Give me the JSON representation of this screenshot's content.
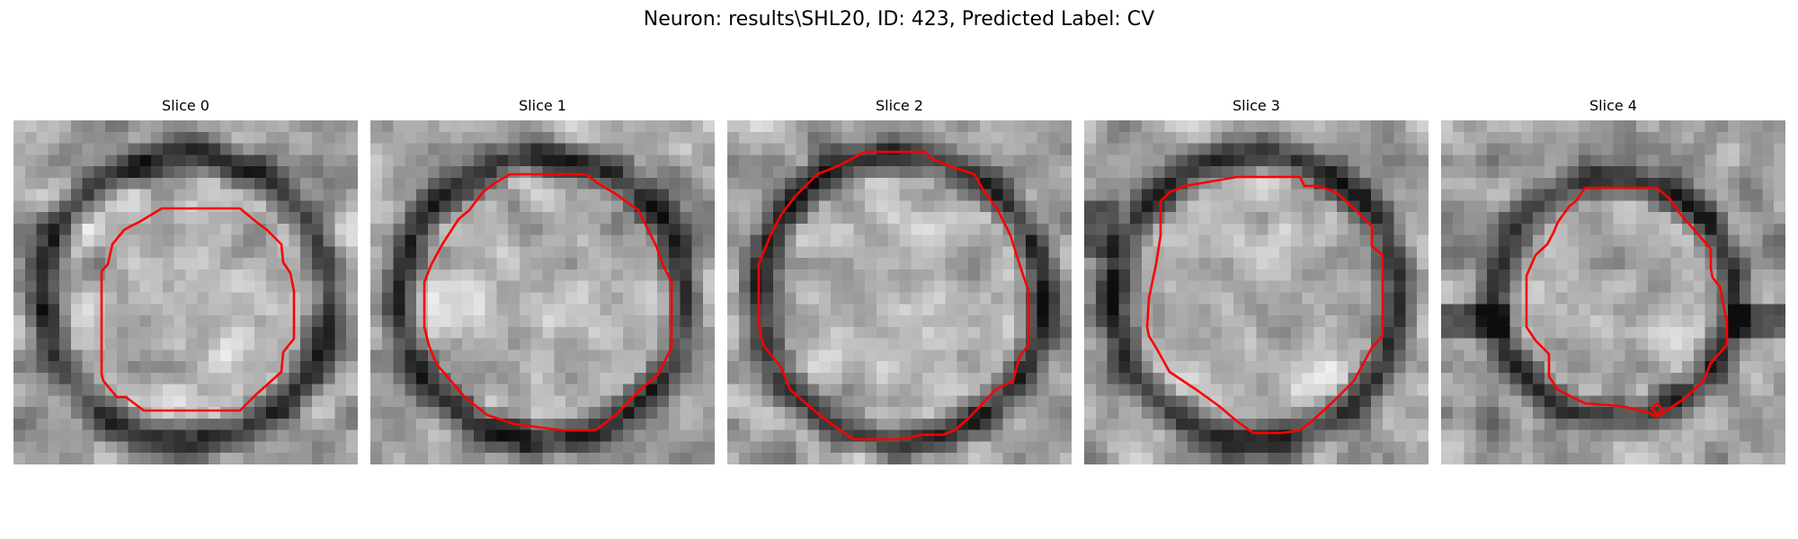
{
  "figure": {
    "title": "Neuron: results\\SHL20, ID: 423, Predicted Label: CV"
  },
  "panels": [
    {
      "title": "Slice 0"
    },
    {
      "title": "Slice 1"
    },
    {
      "title": "Slice 2"
    },
    {
      "title": "Slice 3"
    },
    {
      "title": "Slice 4"
    }
  ],
  "colors": {
    "contour": "#ff0000",
    "background": "#ffffff",
    "image_colormap": "grayscale"
  }
}
